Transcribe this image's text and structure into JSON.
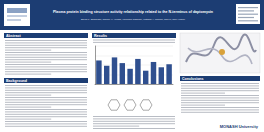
{
  "header": {
    "title": "Plasma protein binding structure activity relationship related to the N-terminus of daptomycin",
    "authors": "Elena K. Schneider, Johnny X. Huang, Vincenzo Carbone, Mathew A. Cooper, Jian Li, Tony Velkov"
  },
  "sections": [
    {
      "heading": "Abstract"
    },
    {
      "heading": "Background"
    },
    {
      "heading": "Results"
    },
    {
      "heading": "Conclusions"
    }
  ],
  "logo": "MONASH University",
  "chart_data": {
    "type": "bar",
    "categories": [
      null,
      null,
      null,
      null,
      null,
      null,
      null,
      null,
      null,
      null
    ],
    "values": [
      62,
      48,
      70,
      55,
      40,
      66,
      35,
      58,
      44,
      52
    ],
    "color": "#2f4f8f",
    "ylim": [
      0,
      100
    ],
    "yticks": [
      0,
      25,
      50,
      75,
      100
    ],
    "grid": true,
    "tick_labels": false
  }
}
